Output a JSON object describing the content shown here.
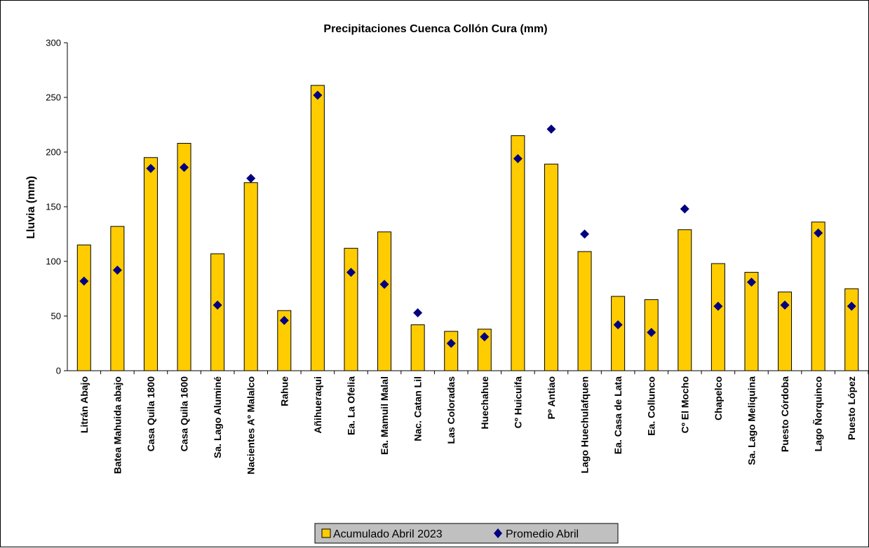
{
  "chart_data": {
    "type": "bar",
    "title": "Precipitaciones Cuenca Collón Cura (mm)",
    "ylabel": "Lluvia (mm)",
    "xlabel": "",
    "ylim": [
      0,
      300
    ],
    "yticks": [
      0,
      50,
      100,
      150,
      200,
      250,
      300
    ],
    "grid": false,
    "legend_position": "bottom",
    "categories": [
      "Litrán Abajo",
      "Batea Mahuida abajo",
      "Casa Quila 1800",
      "Casa Quila 1600",
      "Sa. Lago Aluminé",
      "Nacientes Aº Malalco",
      "Rahue",
      "Añihueraqui",
      "Ea. La Ofelia",
      "Ea. Mamuil Malal",
      "Nac. Catan Lil",
      "Las Coloradas",
      "Huechahue",
      "Cº Huicuifa",
      "Pº Antiao",
      "Lago Huechulafquen",
      "Ea. Casa de Lata",
      "Ea. Collunco",
      "Cº El Mocho",
      "Chapelco",
      "Sa. Lago Meliquina",
      "Puesto Córdoba",
      "Lago Ñorquinco",
      "Puesto López"
    ],
    "series": [
      {
        "name": "Acumulado Abril 2023",
        "type": "bar",
        "color": "#FFCC00",
        "values": [
          115,
          132,
          195,
          208,
          107,
          172,
          55,
          261,
          112,
          127,
          42,
          36,
          38,
          215,
          189,
          109,
          68,
          65,
          129,
          98,
          90,
          72,
          136,
          75
        ]
      },
      {
        "name": "Promedio Abril",
        "type": "scatter",
        "marker": "diamond",
        "color": "#000080",
        "values": [
          82,
          92,
          185,
          186,
          60,
          176,
          46,
          252,
          90,
          79,
          53,
          25,
          31,
          194,
          221,
          125,
          42,
          35,
          148,
          59,
          81,
          60,
          126,
          59
        ]
      }
    ]
  }
}
